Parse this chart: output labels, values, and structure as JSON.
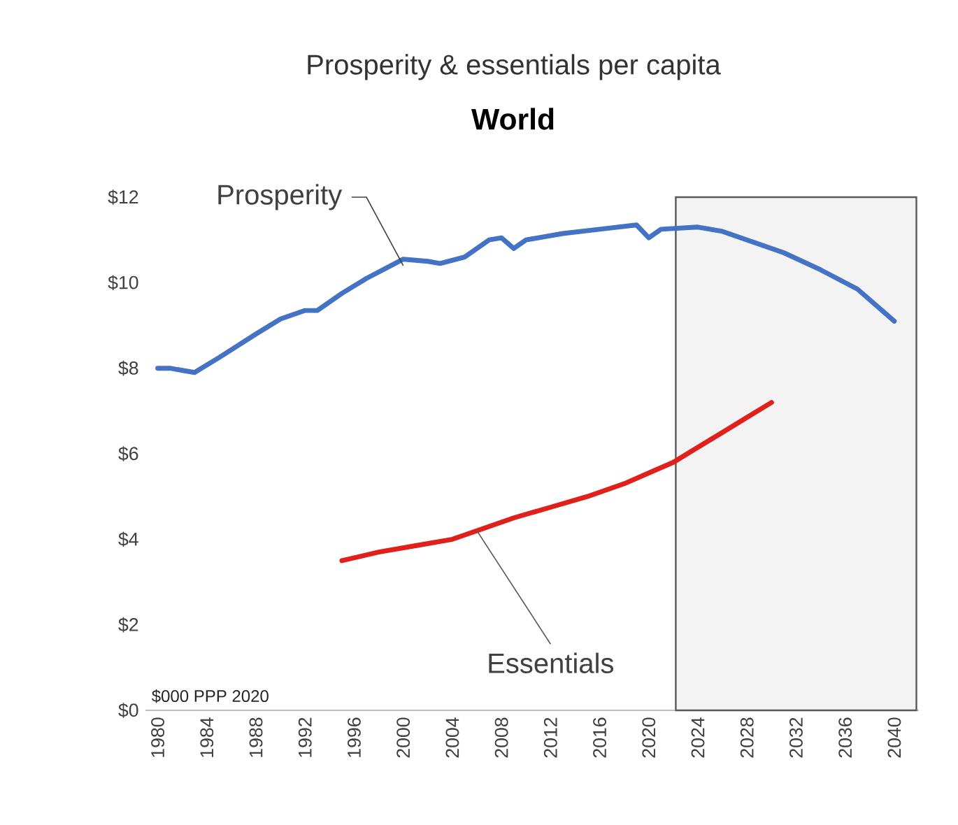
{
  "chart_data": {
    "type": "line",
    "title": "Prosperity & essentials per capita",
    "subtitle": "World",
    "xlim": [
      1979,
      2042
    ],
    "xticks": [
      1980,
      1984,
      1988,
      1992,
      1996,
      2000,
      2004,
      2008,
      2012,
      2016,
      2020,
      2024,
      2028,
      2032,
      2036,
      2040
    ],
    "ylim": [
      0,
      12
    ],
    "yticks": [
      {
        "value": 0,
        "label": "$0"
      },
      {
        "value": 2,
        "label": "$2"
      },
      {
        "value": 4,
        "label": "$4"
      },
      {
        "value": 6,
        "label": "$6"
      },
      {
        "value": 8,
        "label": "$8"
      },
      {
        "value": 10,
        "label": "$10"
      },
      {
        "value": 12,
        "label": "$12"
      }
    ],
    "grid": false,
    "marker": "none",
    "line_style": "solid",
    "series": [
      {
        "color": "#4472c4",
        "x": [
          1980,
          1981,
          1982,
          1983,
          1985,
          1988,
          1990,
          1992,
          1993,
          1995,
          1997,
          1999,
          2000,
          2002,
          2003,
          2005,
          2007,
          2008,
          2009,
          2010,
          2013,
          2016,
          2019,
          2020,
          2021,
          2024,
          2026,
          2028,
          2031,
          2034,
          2037,
          2040
        ],
        "values": [
          8.0,
          8.0,
          7.95,
          7.9,
          8.25,
          8.8,
          9.15,
          9.35,
          9.35,
          9.75,
          10.1,
          10.4,
          10.55,
          10.5,
          10.45,
          10.6,
          11.0,
          11.05,
          10.8,
          11.0,
          11.15,
          11.25,
          11.35,
          11.05,
          11.25,
          11.3,
          11.2,
          11.0,
          10.7,
          10.3,
          9.85,
          9.1
        ]
      },
      {
        "color": "#e0201b",
        "x": [
          1995,
          1998,
          2001,
          2004,
          2006,
          2009,
          2012,
          2015,
          2018,
          2020,
          2022,
          2024,
          2026,
          2028,
          2030
        ],
        "values": [
          3.5,
          3.7,
          3.85,
          4.0,
          4.2,
          4.5,
          4.75,
          5.0,
          5.3,
          5.55,
          5.8,
          6.15,
          6.5,
          6.85,
          7.2
        ]
      }
    ],
    "bands": [
      {
        "axis": "x",
        "from": 2022.2,
        "to": 2041.8,
        "color": "#595959"
      }
    ],
    "annotations": [
      {
        "text": "Prosperity",
        "x": 2000,
        "y": 10.4
      },
      {
        "text": "Essentials",
        "x": 2006,
        "y": 4.2
      },
      "$000 PPP 2020"
    ]
  }
}
